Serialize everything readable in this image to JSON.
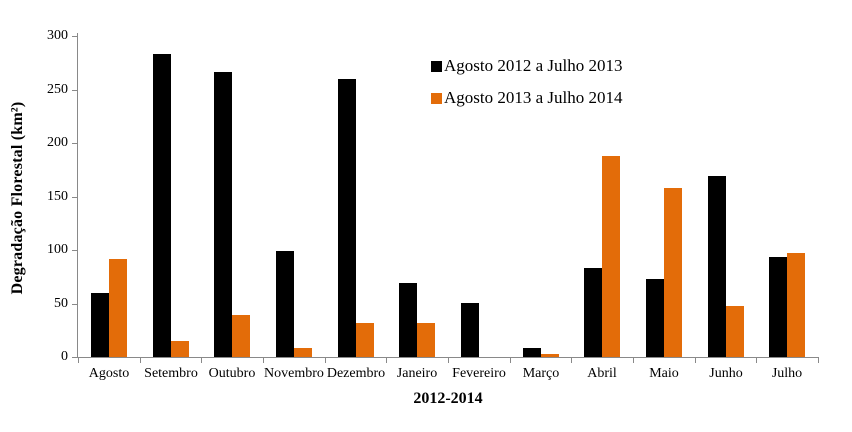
{
  "chart_data": {
    "type": "bar",
    "title": "",
    "xlabel": "2012-2014",
    "ylabel": "Degradação Florestal (km²)",
    "ylim": [
      0,
      300
    ],
    "yticks": [
      0,
      50,
      100,
      150,
      200,
      250,
      300
    ],
    "grid": false,
    "legend_position": "upper-center-right",
    "categories": [
      "Agosto",
      "Setembro",
      "Outubro",
      "Novembro",
      "Dezembro",
      "Janeiro",
      "Fevereiro",
      "Março",
      "Abril",
      "Maio",
      "Junho",
      "Julho"
    ],
    "series": [
      {
        "name": "Agosto 2012 a Julho 2013",
        "color": "#000000",
        "values": [
          60,
          283,
          266,
          99,
          260,
          69,
          50,
          8,
          83,
          73,
          169,
          93
        ]
      },
      {
        "name": "Agosto 2013 a Julho 2014",
        "color": "#E36C09",
        "values": [
          92,
          15,
          39,
          8,
          32,
          32,
          0,
          3,
          188,
          158,
          48,
          97
        ]
      }
    ]
  },
  "colors": {
    "axis_line": "#898989",
    "text": "#000000",
    "background": "#ffffff"
  }
}
